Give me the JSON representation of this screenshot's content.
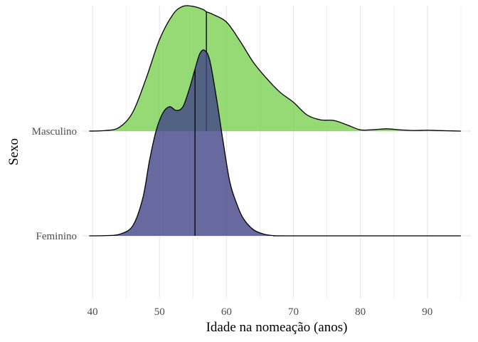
{
  "chart_data": {
    "type": "ridgeline",
    "xlabel": "Idade na nomeação (anos)",
    "ylabel": "Sexo",
    "xlim": [
      38.5,
      96.5
    ],
    "x_ticks": [
      40,
      50,
      60,
      70,
      80,
      90
    ],
    "grid": true,
    "legend": "none",
    "series": [
      {
        "name": "Masculino",
        "fill": "#7ad151",
        "fill_opacity": 0.8,
        "median": 57.0,
        "density": [
          [
            39.5,
            0.0
          ],
          [
            42.0,
            0.005
          ],
          [
            44.0,
            0.03
          ],
          [
            46.0,
            0.15
          ],
          [
            48.0,
            0.42
          ],
          [
            50.0,
            0.73
          ],
          [
            52.0,
            0.93
          ],
          [
            53.5,
            0.995
          ],
          [
            55.0,
            0.995
          ],
          [
            56.5,
            0.97
          ],
          [
            57.0,
            0.952
          ],
          [
            58.0,
            0.93
          ],
          [
            60.0,
            0.87
          ],
          [
            62.0,
            0.72
          ],
          [
            64.0,
            0.55
          ],
          [
            66.0,
            0.42
          ],
          [
            68.0,
            0.31
          ],
          [
            70.0,
            0.23
          ],
          [
            72.0,
            0.13
          ],
          [
            74.0,
            0.09
          ],
          [
            76.0,
            0.085
          ],
          [
            78.0,
            0.05
          ],
          [
            80.0,
            0.01
          ],
          [
            82.0,
            0.012
          ],
          [
            84.0,
            0.018
          ],
          [
            86.0,
            0.01
          ],
          [
            88.0,
            0.005
          ],
          [
            90.0,
            0.007
          ],
          [
            92.0,
            0.004
          ],
          [
            95.0,
            0.0
          ]
        ]
      },
      {
        "name": "Feminino",
        "fill": "#414487",
        "fill_opacity": 0.8,
        "median": 55.3,
        "density": [
          [
            39.5,
            0.0
          ],
          [
            42.0,
            0.002
          ],
          [
            44.0,
            0.012
          ],
          [
            46.0,
            0.08
          ],
          [
            47.5,
            0.3
          ],
          [
            48.5,
            0.6
          ],
          [
            49.5,
            0.84
          ],
          [
            50.5,
            0.98
          ],
          [
            51.5,
            1.03
          ],
          [
            52.5,
            1.0
          ],
          [
            53.5,
            1.03
          ],
          [
            54.5,
            1.18
          ],
          [
            55.3,
            1.33
          ],
          [
            56.0,
            1.45
          ],
          [
            56.7,
            1.48
          ],
          [
            57.5,
            1.4
          ],
          [
            58.5,
            1.1
          ],
          [
            59.5,
            0.75
          ],
          [
            60.5,
            0.43
          ],
          [
            61.5,
            0.26
          ],
          [
            62.5,
            0.14
          ],
          [
            64.0,
            0.05
          ],
          [
            65.5,
            0.015
          ],
          [
            67.0,
            0.002
          ],
          [
            70.0,
            0.0
          ],
          [
            95.0,
            0.0
          ]
        ]
      }
    ]
  }
}
